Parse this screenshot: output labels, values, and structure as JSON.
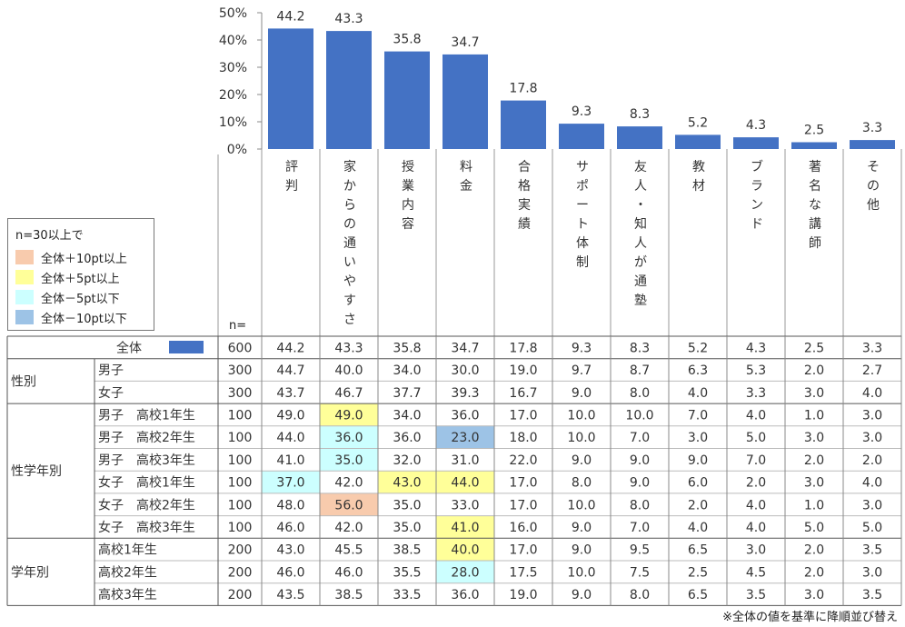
{
  "colors": {
    "bar": "#4472c4",
    "plus10": "#f8cbad",
    "plus5": "#ffff99",
    "minus5": "#ccffff",
    "minus10": "#9dc3e6"
  },
  "chart_data": {
    "type": "bar",
    "categories": [
      "評判",
      "家からの通いやすさ",
      "授業内容",
      "料金",
      "合格実績",
      "サポート体制",
      "友人・知人が通塾",
      "教材",
      "ブランド",
      "著名な講師",
      "その他"
    ],
    "values": [
      44.2,
      43.3,
      35.8,
      34.7,
      17.8,
      9.3,
      8.3,
      5.2,
      4.3,
      2.5,
      3.3
    ],
    "ylim": [
      0,
      50
    ],
    "yticks": [
      "0%",
      "10%",
      "20%",
      "30%",
      "40%",
      "50%"
    ],
    "ytick_values": [
      0,
      10,
      20,
      30,
      40,
      50
    ],
    "grid": false,
    "legend_position": "left"
  },
  "legend": {
    "title": "n=30以上で",
    "items": [
      {
        "label": "全体＋10pt以上",
        "color": "#f8cbad"
      },
      {
        "label": "全体＋5pt以上",
        "color": "#ffff99"
      },
      {
        "label": "全体－5pt以下",
        "color": "#ccffff"
      },
      {
        "label": "全体－10pt以下",
        "color": "#9dc3e6"
      }
    ]
  },
  "table": {
    "n_header": "n=",
    "total": {
      "label": "全体",
      "n": "600",
      "values": [
        "44.2",
        "43.3",
        "35.8",
        "34.7",
        "17.8",
        "9.3",
        "8.3",
        "5.2",
        "4.3",
        "2.5",
        "3.3"
      ]
    },
    "groups": [
      {
        "label": "性別",
        "rows": [
          {
            "label": "男子",
            "n": "300",
            "values": [
              "44.7",
              "40.0",
              "34.0",
              "30.0",
              "19.0",
              "9.7",
              "8.7",
              "6.3",
              "5.3",
              "2.0",
              "2.7"
            ],
            "highlights": [
              null,
              null,
              null,
              null,
              null,
              null,
              null,
              null,
              null,
              null,
              null
            ]
          },
          {
            "label": "女子",
            "n": "300",
            "values": [
              "43.7",
              "46.7",
              "37.7",
              "39.3",
              "16.7",
              "9.0",
              "8.0",
              "4.0",
              "3.3",
              "3.0",
              "4.0"
            ],
            "highlights": [
              null,
              null,
              null,
              null,
              null,
              null,
              null,
              null,
              null,
              null,
              null
            ]
          }
        ]
      },
      {
        "label": "性学年別",
        "rows": [
          {
            "label": "男子　高校1年生",
            "n": "100",
            "values": [
              "49.0",
              "49.0",
              "34.0",
              "36.0",
              "17.0",
              "10.0",
              "10.0",
              "7.0",
              "4.0",
              "1.0",
              "3.0"
            ],
            "highlights": [
              null,
              "plus5",
              null,
              null,
              null,
              null,
              null,
              null,
              null,
              null,
              null
            ]
          },
          {
            "label": "男子　高校2年生",
            "n": "100",
            "values": [
              "44.0",
              "36.0",
              "36.0",
              "23.0",
              "18.0",
              "10.0",
              "7.0",
              "3.0",
              "5.0",
              "3.0",
              "3.0"
            ],
            "highlights": [
              null,
              "minus5",
              null,
              "minus10",
              null,
              null,
              null,
              null,
              null,
              null,
              null
            ]
          },
          {
            "label": "男子　高校3年生",
            "n": "100",
            "values": [
              "41.0",
              "35.0",
              "32.0",
              "31.0",
              "22.0",
              "9.0",
              "9.0",
              "9.0",
              "7.0",
              "2.0",
              "2.0"
            ],
            "highlights": [
              null,
              "minus5",
              null,
              null,
              null,
              null,
              null,
              null,
              null,
              null,
              null
            ]
          },
          {
            "label": "女子　高校1年生",
            "n": "100",
            "values": [
              "37.0",
              "42.0",
              "43.0",
              "44.0",
              "17.0",
              "8.0",
              "9.0",
              "6.0",
              "2.0",
              "3.0",
              "4.0"
            ],
            "highlights": [
              "minus5",
              null,
              "plus5",
              "plus5",
              null,
              null,
              null,
              null,
              null,
              null,
              null
            ]
          },
          {
            "label": "女子　高校2年生",
            "n": "100",
            "values": [
              "48.0",
              "56.0",
              "35.0",
              "33.0",
              "17.0",
              "10.0",
              "8.0",
              "2.0",
              "4.0",
              "1.0",
              "3.0"
            ],
            "highlights": [
              null,
              "plus10",
              null,
              null,
              null,
              null,
              null,
              null,
              null,
              null,
              null
            ]
          },
          {
            "label": "女子　高校3年生",
            "n": "100",
            "values": [
              "46.0",
              "42.0",
              "35.0",
              "41.0",
              "16.0",
              "9.0",
              "7.0",
              "4.0",
              "4.0",
              "5.0",
              "5.0"
            ],
            "highlights": [
              null,
              null,
              null,
              "plus5",
              null,
              null,
              null,
              null,
              null,
              null,
              null
            ]
          }
        ]
      },
      {
        "label": "学年別",
        "rows": [
          {
            "label": "高校1年生",
            "n": "200",
            "values": [
              "43.0",
              "45.5",
              "38.5",
              "40.0",
              "17.0",
              "9.0",
              "9.5",
              "6.5",
              "3.0",
              "2.0",
              "3.5"
            ],
            "highlights": [
              null,
              null,
              null,
              "plus5",
              null,
              null,
              null,
              null,
              null,
              null,
              null
            ]
          },
          {
            "label": "高校2年生",
            "n": "200",
            "values": [
              "46.0",
              "46.0",
              "35.5",
              "28.0",
              "17.5",
              "10.0",
              "7.5",
              "2.5",
              "4.5",
              "2.0",
              "3.0"
            ],
            "highlights": [
              null,
              null,
              null,
              "minus5",
              null,
              null,
              null,
              null,
              null,
              null,
              null
            ]
          },
          {
            "label": "高校3年生",
            "n": "200",
            "values": [
              "43.5",
              "38.5",
              "33.5",
              "36.0",
              "19.0",
              "9.0",
              "8.0",
              "6.5",
              "3.5",
              "3.0",
              "3.5"
            ],
            "highlights": [
              null,
              null,
              null,
              null,
              null,
              null,
              null,
              null,
              null,
              null,
              null
            ]
          }
        ]
      }
    ]
  },
  "footnote": "※全体の値を基準に降順並び替え"
}
